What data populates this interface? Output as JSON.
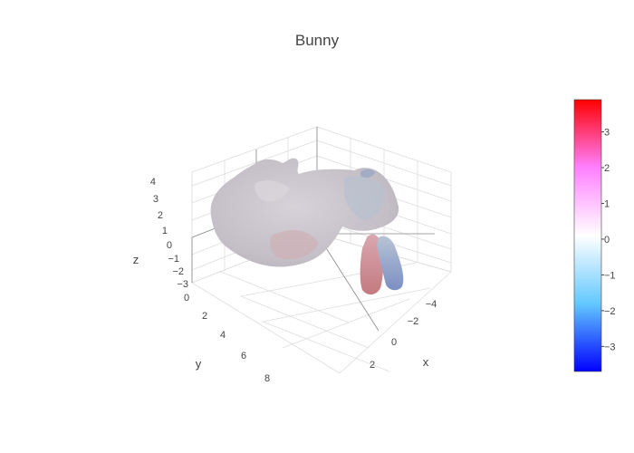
{
  "chart_data": {
    "type": "surface",
    "title": "Bunny",
    "scene": {
      "x": {
        "title": "x",
        "ticks": [
          "−4",
          "−2",
          "0",
          "2"
        ]
      },
      "y": {
        "title": "y",
        "ticks": [
          "0",
          "2",
          "4",
          "6",
          "8"
        ]
      },
      "z": {
        "title": "z",
        "ticks": [
          "4",
          "3",
          "2",
          "1",
          "0",
          "−1",
          "−2",
          "−3"
        ]
      }
    },
    "colorscale": [
      "#0000ff",
      "#64c8ff",
      "#ffffff",
      "#ff80ff",
      "#ff0000"
    ],
    "colorbar": {
      "ticks": [
        "3",
        "2",
        "1",
        "0",
        "−1",
        "−2",
        "−3"
      ],
      "range": [
        -3.7,
        3.9
      ]
    },
    "surface_color": "#c2bcc4"
  }
}
